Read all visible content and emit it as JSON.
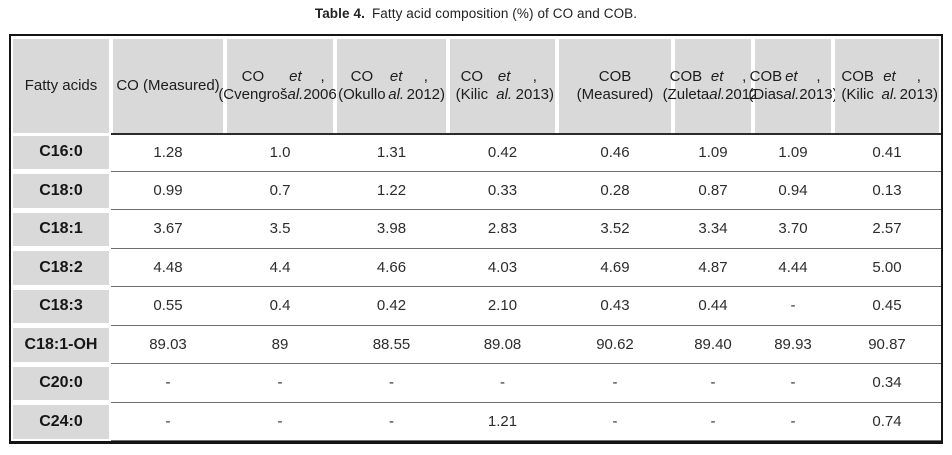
{
  "caption": {
    "label": "Table 4.",
    "text": "Fatty acid composition (%) of CO and COB."
  },
  "table": {
    "columns": [
      "Fatty acids",
      "CO (Measured)",
      "CO (Cvengroš et al., 2006)",
      "CO (Okullo et al., 2012)",
      "CO (Kilic et al., 2013)",
      "COB (Measured)",
      "COB (Zuleta et al., 2012)",
      "COB (Dias et al., 2013)",
      "COB (Kilic et al., 2013)"
    ],
    "rows": [
      {
        "label": "C16:0",
        "values": [
          "1.28",
          "1.0",
          "1.31",
          "0.42",
          "0.46",
          "1.09",
          "1.09",
          "0.41"
        ]
      },
      {
        "label": "C18:0",
        "values": [
          "0.99",
          "0.7",
          "1.22",
          "0.33",
          "0.28",
          "0.87",
          "0.94",
          "0.13"
        ]
      },
      {
        "label": "C18:1",
        "values": [
          "3.67",
          "3.5",
          "3.98",
          "2.83",
          "3.52",
          "3.34",
          "3.70",
          "2.57"
        ]
      },
      {
        "label": "C18:2",
        "values": [
          "4.48",
          "4.4",
          "4.66",
          "4.03",
          "4.69",
          "4.87",
          "4.44",
          "5.00"
        ]
      },
      {
        "label": "C18:3",
        "values": [
          "0.55",
          "0.4",
          "0.42",
          "2.10",
          "0.43",
          "0.44",
          "-",
          "0.45"
        ]
      },
      {
        "label": "C18:1-OH",
        "values": [
          "89.03",
          "89",
          "88.55",
          "89.08",
          "90.62",
          "89.40",
          "89.93",
          "90.87"
        ]
      },
      {
        "label": "C20:0",
        "values": [
          "-",
          "-",
          "-",
          "-",
          "-",
          "-",
          "-",
          "0.34"
        ]
      },
      {
        "label": "C24:0",
        "values": [
          "-",
          "-",
          "-",
          "1.21",
          "-",
          "-",
          "-",
          "0.74"
        ]
      }
    ]
  }
}
